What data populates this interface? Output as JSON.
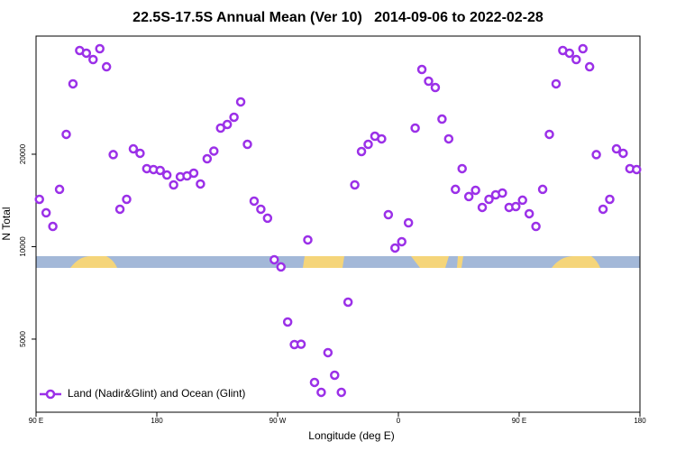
{
  "chart_data": {
    "type": "scatter",
    "title": "22.5S-17.5S Annual Mean (Ver 10)   2014-09-06 to 2022-02-28",
    "xlabel": "Longitude (deg E)",
    "ylabel": "N Total",
    "ylog": true,
    "xlim": [
      90,
      540
    ],
    "ylim": [
      2890,
      48500
    ],
    "xticks": [
      {
        "value": 90,
        "label": "90 E"
      },
      180,
      {
        "value": 270,
        "label": "90 W"
      },
      {
        "value": 360,
        "label": "0"
      },
      {
        "value": 450,
        "label": "90 E"
      },
      {
        "value": 540,
        "label": "180"
      }
    ],
    "yticks": [
      5000,
      10000,
      20000
    ],
    "legend": "bottom-left",
    "x": [
      92.5,
      97.5,
      102.5,
      107.5,
      112.5,
      117.5,
      122.5,
      127.5,
      132.5,
      137.5,
      142.5,
      147.5,
      152.5,
      157.5,
      162.5,
      167.5,
      172.5,
      177.5,
      182.5,
      187.5,
      192.5,
      197.5,
      202.5,
      207.5,
      212.5,
      217.5,
      222.5,
      227.5,
      232.5,
      237.5,
      242.5,
      247.5,
      252.5,
      257.5,
      262.5,
      267.5,
      272.5,
      277.5,
      282.5,
      287.5,
      292.5,
      297.5,
      302.5,
      307.5,
      312.5,
      317.5,
      322.5,
      327.5,
      332.5,
      337.5,
      342.5,
      347.5,
      352.5,
      357.5,
      362.5,
      367.5,
      372.5,
      377.5,
      382.5,
      387.5,
      392.5,
      397.5,
      402.5,
      407.5,
      412.5,
      417.5,
      422.5,
      427.5,
      432.5,
      437.5,
      442.5,
      447.5,
      452.5,
      457.5,
      462.5,
      467.5,
      472.5,
      477.5,
      482.5,
      487.5,
      492.5,
      497.5,
      502.5,
      507.5,
      512.5,
      517.5,
      522.5,
      527.5,
      532.5,
      537.5
    ],
    "series": [
      {
        "name": "Land (Nadir&Glint) and Ocean (Glint)",
        "color": "#9b30e8",
        "values": [
          14260,
          12890,
          11640,
          15370,
          23210,
          33900,
          43530,
          42660,
          40680,
          44120,
          38530,
          19940,
          13240,
          14260,
          20820,
          20140,
          17950,
          17830,
          17710,
          17110,
          15890,
          16890,
          17000,
          17350,
          16000,
          19330,
          20480,
          24330,
          25000,
          26390,
          29610,
          21540,
          14070,
          13240,
          12380,
          9067,
          8590,
          5684,
          4800,
          4812,
          10520,
          3614,
          3355,
          4517,
          3814,
          3355,
          6596,
          15890,
          20410,
          21540,
          22890,
          22440,
          12710,
          9899,
          10380,
          11960,
          24330,
          37760,
          34580,
          32980,
          26030,
          22440,
          15370,
          17950,
          14560,
          15260,
          13420,
          14260,
          14750,
          14950,
          13420,
          13510,
          14170,
          12800,
          11640,
          15370,
          23210,
          33900,
          43530,
          42660,
          40680,
          44120,
          38530,
          19940,
          13240,
          14260,
          20820,
          20140,
          17950,
          17830
        ]
      }
    ]
  }
}
